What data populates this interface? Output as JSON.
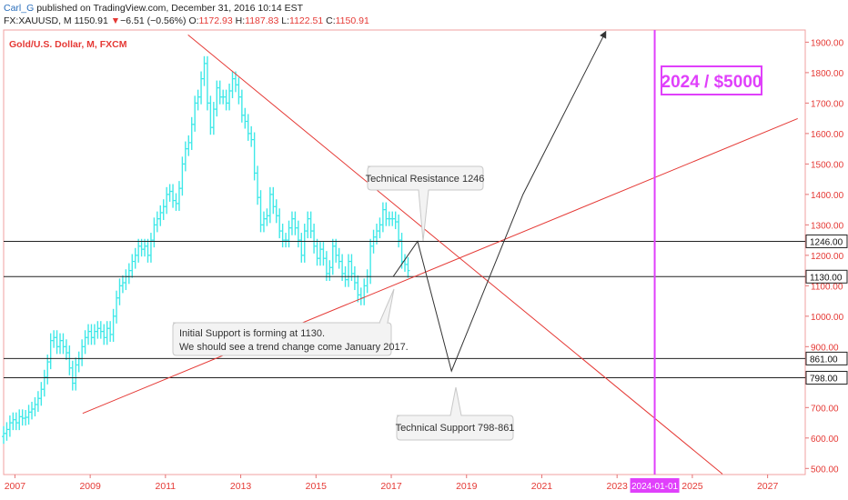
{
  "header": {
    "author": "Carl_G",
    "published": "published on TradingView.com, December 31, 2016 10:14 EST",
    "symbol": "FX:XAUUSD, M",
    "last": "1150.91",
    "change_arrow": "▼",
    "change": "−6.51 (−0.56%)",
    "open_label": "O:",
    "open": "1172.93",
    "high_label": "H:",
    "high": "1187.83",
    "low_label": "L:",
    "low": "1122.51",
    "close_label": "C:",
    "close": "1150.91"
  },
  "chart_data": {
    "type": "bar",
    "title": "Gold/U.S. Dollar, M, FXCM",
    "x_axis": {
      "range": [
        2006.7,
        2028.0
      ],
      "ticks": [
        {
          "value": 2007,
          "label": "2007"
        },
        {
          "value": 2009,
          "label": "2009"
        },
        {
          "value": 2011,
          "label": "2011"
        },
        {
          "value": 2013,
          "label": "2013"
        },
        {
          "value": 2015,
          "label": "2015"
        },
        {
          "value": 2017,
          "label": "2017"
        },
        {
          "value": 2019,
          "label": "2019"
        },
        {
          "value": 2021,
          "label": "2021"
        },
        {
          "value": 2023,
          "label": "2023"
        },
        {
          "value": 2025,
          "label": "2025"
        },
        {
          "value": 2027,
          "label": "2027"
        }
      ],
      "highlight": {
        "value": 2024,
        "label": "2024-01-01"
      }
    },
    "y_axis": {
      "range": [
        480,
        1940
      ],
      "ticks": [
        500,
        600,
        700,
        800,
        900,
        1000,
        1100,
        1200,
        1300,
        1400,
        1500,
        1600,
        1700,
        1800,
        1900
      ],
      "tick_labels": [
        "500.00",
        "600.00",
        "700.00",
        "800.00",
        "900.00",
        "1000.00",
        "1100.00",
        "1200.00",
        "1300.00",
        "1400.00",
        "1500.00",
        "1600.00",
        "1700.00",
        "1800.00",
        "1900.00"
      ]
    },
    "price_series": {
      "color": "#3fe8e8",
      "start": 2006.7,
      "step": 0.0833,
      "close": [
        615,
        628,
        650,
        660,
        650,
        670,
        665,
        668,
        685,
        695,
        710,
        730,
        760,
        800,
        850,
        920,
        930,
        900,
        920,
        900,
        880,
        830,
        780,
        840,
        860,
        900,
        930,
        950,
        930,
        950,
        960,
        950,
        930,
        960,
        940,
        1000,
        1060,
        1100,
        1110,
        1130,
        1150,
        1180,
        1200,
        1230,
        1220,
        1230,
        1200,
        1250,
        1300,
        1320,
        1340,
        1360,
        1400,
        1410,
        1380,
        1370,
        1420,
        1500,
        1550,
        1570,
        1630,
        1700,
        1720,
        1780,
        1830,
        1700,
        1620,
        1680,
        1750,
        1720,
        1720,
        1700,
        1740,
        1780,
        1760,
        1720,
        1660,
        1640,
        1600,
        1580,
        1470,
        1390,
        1300,
        1320,
        1330,
        1400,
        1360,
        1330,
        1280,
        1250,
        1250,
        1290,
        1320,
        1290,
        1250,
        1200,
        1280,
        1320,
        1280,
        1230,
        1190,
        1220,
        1190,
        1140,
        1160,
        1230,
        1200,
        1180,
        1140,
        1120,
        1180,
        1140,
        1110,
        1070,
        1060,
        1100,
        1130,
        1230,
        1260,
        1280,
        1300,
        1350,
        1320,
        1320,
        1320,
        1310,
        1250,
        1180,
        1170,
        1150
      ],
      "range_half": 40
    },
    "horizontal_levels": [
      {
        "value": 1246,
        "label": "1246.00"
      },
      {
        "value": 1130,
        "label": "1130.00"
      },
      {
        "value": 861,
        "label": "861.00"
      },
      {
        "value": 798,
        "label": "798.00"
      }
    ],
    "trendlines": [
      {
        "name": "resistance",
        "color": "#e53935",
        "points": [
          [
            2011.6,
            1924
          ],
          [
            2025.8,
            482
          ]
        ]
      },
      {
        "name": "support",
        "color": "#e53935",
        "points": [
          [
            2008.8,
            681
          ],
          [
            2027.8,
            1649
          ]
        ]
      }
    ],
    "projection": [
      [
        2017.05,
        1130
      ],
      [
        2017.7,
        1246
      ],
      [
        2018.6,
        820
      ],
      [
        2020.5,
        1400
      ],
      [
        2022.7,
        1935
      ]
    ],
    "vertical_marker": {
      "value": 2024.0,
      "color": "#e040fb"
    },
    "annotations": [
      {
        "name": "technical-resistance",
        "lines": [
          "Technical Resistance 1246"
        ]
      },
      {
        "name": "initial-support",
        "lines": [
          "Initial Support is forming at 1130.",
          "We should see a trend change come January 2017."
        ]
      },
      {
        "name": "technical-support",
        "lines": [
          "Technical Support 798-861"
        ]
      },
      {
        "name": "target",
        "lines": [
          "2024 / $5000"
        ]
      }
    ]
  }
}
